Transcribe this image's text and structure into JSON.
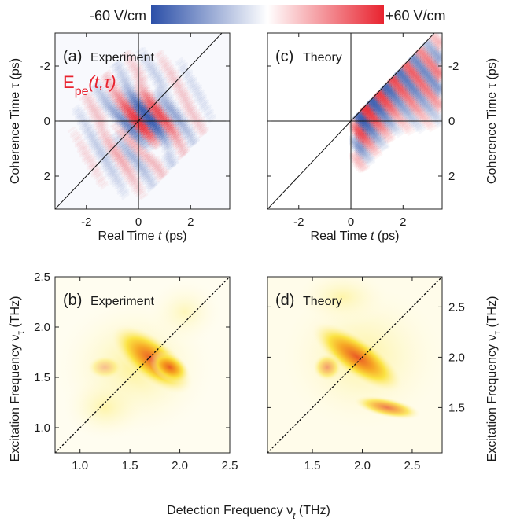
{
  "colorbar": {
    "min_label": "-60 V/cm",
    "max_label": "+60 V/cm",
    "neg_color": "#2b4fa8",
    "mid_color": "#ffffff",
    "pos_color": "#e8232f"
  },
  "chart_data": [
    {
      "id": "a",
      "type": "heatmap",
      "panel_label": "(a)",
      "title": "Experiment",
      "annotation": "E_pe(t,τ)",
      "annotation_main": "E",
      "annotation_sub": "pe",
      "annotation_args": "(t,τ)",
      "xlabel": "Real Time t (ps)",
      "ylabel": "Coherence Time τ (ps)",
      "xlim": [
        -3.2,
        3.5
      ],
      "ylim": [
        3.2,
        -3.2
      ],
      "xticks": [
        -2,
        0,
        2
      ],
      "yticks": [
        -2,
        0,
        2
      ],
      "xtick_labels": [
        "-2",
        "0",
        "2"
      ],
      "ytick_labels": [
        "-2",
        "0",
        "2"
      ],
      "value_range": [
        -60,
        60
      ],
      "units": "V/cm",
      "reference_lines": [
        "t = 0",
        "τ = 0",
        "t = -τ"
      ]
    },
    {
      "id": "c",
      "type": "heatmap",
      "panel_label": "(c)",
      "title": "Theory",
      "xlabel": "Real Time t (ps)",
      "ylabel": "Coherence Time τ (ps)",
      "xlim": [
        -3.2,
        3.5
      ],
      "ylim": [
        3.2,
        -3.2
      ],
      "xticks": [
        -2,
        0,
        2
      ],
      "yticks": [
        -2,
        0,
        2
      ],
      "xtick_labels": [
        "-2",
        "0",
        "2"
      ],
      "ytick_labels": [
        "-2",
        "0",
        "2"
      ],
      "value_range": [
        -60,
        60
      ],
      "units": "V/cm",
      "reference_lines": [
        "t = 0",
        "τ = 0",
        "t = -τ"
      ]
    },
    {
      "id": "b",
      "type": "heatmap",
      "panel_label": "(b)",
      "title": "Experiment",
      "xlabel": "Detection Frequency ν_t (THz)",
      "ylabel": "Excitation Frequency ν_τ (THz)",
      "xlim": [
        0.75,
        2.5
      ],
      "ylim": [
        0.75,
        2.5
      ],
      "xticks": [
        1.0,
        1.5,
        2.0,
        2.5
      ],
      "yticks": [
        1.0,
        1.5,
        2.0,
        2.5
      ],
      "xtick_labels": [
        "1.0",
        "1.5",
        "2.0",
        "2.5"
      ],
      "ytick_labels": [
        "1.0",
        "1.5",
        "2.0",
        "2.5"
      ],
      "peak": {
        "x": 1.72,
        "y": 1.68
      },
      "reference_lines": [
        "ν_t = ν_τ"
      ]
    },
    {
      "id": "d",
      "type": "heatmap",
      "panel_label": "(d)",
      "title": "Theory",
      "xlabel": "Detection Frequency ν_t (THz)",
      "ylabel": "Excitation Frequency ν_τ (THz)",
      "xlim": [
        1.05,
        2.8
      ],
      "ylim": [
        1.05,
        2.8
      ],
      "xticks": [
        1.5,
        2.0,
        2.5
      ],
      "yticks": [
        1.5,
        2.0,
        2.5
      ],
      "xtick_labels": [
        "1.5",
        "2.0",
        "2.5"
      ],
      "ytick_labels": [
        "1.5",
        "2.0",
        "2.5"
      ],
      "peak": {
        "x": 1.95,
        "y": 2.0
      },
      "reference_lines": [
        "ν_t = ν_τ"
      ]
    }
  ],
  "shared_labels": {
    "left_top_ylabel": "Coherence Time τ (ps)",
    "right_top_ylabel": "Coherence Time τ (ps)",
    "top_xlabel_left": "Real Time t (ps)",
    "top_xlabel_right": "Real Time t (ps)",
    "left_bottom_ylabel": "Excitation Frequency ν_τ (THz)",
    "right_bottom_ylabel": "Excitation Frequency ν_τ (THz)",
    "bottom_xlabel": "Detection Frequency ν_t (THz)"
  }
}
